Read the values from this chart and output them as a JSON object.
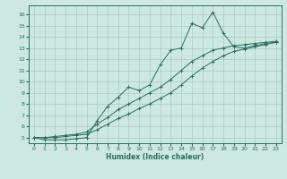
{
  "xlabel": "Humidex (Indice chaleur)",
  "bg_color": "#cce8e0",
  "grid_color": "#aaccc4",
  "line_color": "#2a6e60",
  "xmin": -0.5,
  "xmax": 23.5,
  "ymin": 4.5,
  "ymax": 16.8,
  "yticks": [
    5,
    6,
    7,
    8,
    9,
    10,
    11,
    12,
    13,
    14,
    15,
    16
  ],
  "xticks": [
    0,
    1,
    2,
    3,
    4,
    5,
    6,
    7,
    8,
    9,
    10,
    11,
    12,
    13,
    14,
    15,
    16,
    17,
    18,
    19,
    20,
    21,
    22,
    23
  ],
  "line1_x": [
    0,
    1,
    2,
    3,
    4,
    5,
    6,
    7,
    8,
    9,
    10,
    11,
    12,
    13,
    14,
    15,
    16,
    17,
    18,
    19,
    20,
    21,
    22,
    23
  ],
  "line1_y": [
    5.0,
    4.8,
    4.8,
    4.8,
    4.9,
    5.0,
    6.5,
    7.8,
    8.6,
    9.5,
    9.2,
    9.7,
    11.5,
    12.8,
    13.0,
    15.2,
    14.8,
    16.2,
    14.3,
    13.1,
    13.0,
    13.2,
    13.4,
    13.5
  ],
  "line2_x": [
    0,
    1,
    2,
    3,
    4,
    5,
    6,
    7,
    8,
    9,
    10,
    11,
    12,
    13,
    14,
    15,
    16,
    17,
    18,
    19,
    20,
    21,
    22,
    23
  ],
  "line2_y": [
    5.0,
    5.0,
    5.1,
    5.2,
    5.3,
    5.5,
    6.2,
    6.8,
    7.5,
    8.0,
    8.5,
    9.0,
    9.5,
    10.2,
    11.0,
    11.8,
    12.3,
    12.8,
    13.0,
    13.2,
    13.3,
    13.4,
    13.5,
    13.6
  ],
  "line3_x": [
    0,
    1,
    2,
    3,
    4,
    5,
    6,
    7,
    8,
    9,
    10,
    11,
    12,
    13,
    14,
    15,
    16,
    17,
    18,
    19,
    20,
    21,
    22,
    23
  ],
  "line3_y": [
    5.0,
    5.0,
    5.0,
    5.1,
    5.2,
    5.3,
    5.7,
    6.2,
    6.7,
    7.1,
    7.6,
    8.0,
    8.5,
    9.0,
    9.7,
    10.5,
    11.2,
    11.8,
    12.3,
    12.7,
    12.9,
    13.1,
    13.3,
    13.5
  ]
}
